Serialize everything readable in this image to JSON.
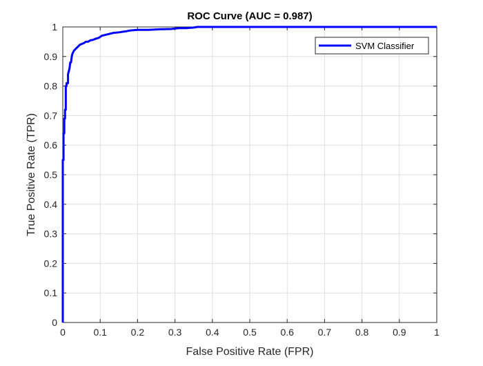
{
  "chart_data": {
    "type": "line",
    "title": "ROC Curve (AUC = 0.987)",
    "xlabel": "False Positive Rate (FPR)",
    "ylabel": "True Positive Rate (TPR)",
    "xlim": [
      0,
      1
    ],
    "ylim": [
      0,
      1
    ],
    "grid": true,
    "legend_position": "top-right",
    "x_ticks": [
      0,
      0.1,
      0.2,
      0.3,
      0.4,
      0.5,
      0.6,
      0.7,
      0.8,
      0.9,
      1
    ],
    "y_ticks": [
      0,
      0.1,
      0.2,
      0.3,
      0.4,
      0.5,
      0.6,
      0.7,
      0.8,
      0.9,
      1
    ],
    "x_tick_labels": [
      "0",
      "0.1",
      "0.2",
      "0.3",
      "0.4",
      "0.5",
      "0.6",
      "0.7",
      "0.8",
      "0.9",
      "1"
    ],
    "y_tick_labels": [
      "0",
      "0.1",
      "0.2",
      "0.3",
      "0.4",
      "0.5",
      "0.6",
      "0.7",
      "0.8",
      "0.9",
      "1"
    ],
    "series": [
      {
        "name": "SVM Classifier",
        "color": "#0000ff",
        "x": [
          0,
          0,
          0.002,
          0.002,
          0.004,
          0.004,
          0.006,
          0.006,
          0.008,
          0.008,
          0.01,
          0.01,
          0.012,
          0.014,
          0.014,
          0.016,
          0.018,
          0.02,
          0.022,
          0.024,
          0.026,
          0.03,
          0.034,
          0.038,
          0.042,
          0.046,
          0.05,
          0.056,
          0.062,
          0.068,
          0.074,
          0.08,
          0.088,
          0.096,
          0.104,
          0.12,
          0.136,
          0.152,
          0.168,
          0.18,
          0.2,
          0.23,
          0.26,
          0.29,
          0.31,
          0.33,
          0.35,
          0.36,
          0.38,
          0.42,
          0.5,
          0.6,
          0.7,
          0.8,
          0.9,
          1.0
        ],
        "y": [
          0,
          0.55,
          0.55,
          0.64,
          0.64,
          0.69,
          0.69,
          0.72,
          0.72,
          0.8,
          0.8,
          0.81,
          0.81,
          0.81,
          0.84,
          0.85,
          0.86,
          0.88,
          0.88,
          0.9,
          0.91,
          0.92,
          0.925,
          0.93,
          0.935,
          0.94,
          0.942,
          0.945,
          0.95,
          0.95,
          0.955,
          0.956,
          0.96,
          0.963,
          0.97,
          0.975,
          0.98,
          0.982,
          0.985,
          0.988,
          0.99,
          0.99,
          0.992,
          0.993,
          0.996,
          0.996,
          0.998,
          1.0,
          1.0,
          1.0,
          1.0,
          1.0,
          1.0,
          1.0,
          1.0,
          1.0
        ]
      }
    ]
  }
}
